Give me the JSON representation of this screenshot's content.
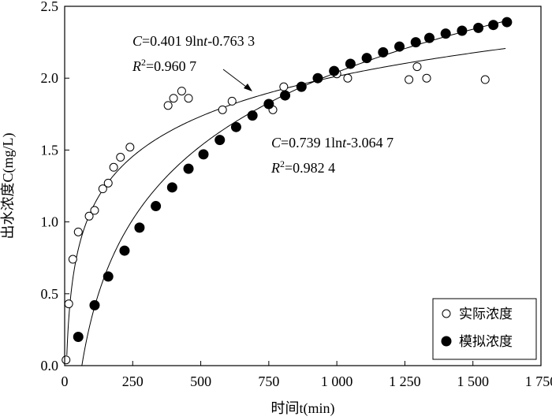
{
  "chart_data": {
    "type": "scatter",
    "xlabel": "时间t(min)",
    "ylabel": "出水浓度C(mg/L)",
    "xlim": [
      0,
      1750
    ],
    "ylim": [
      0,
      2.5
    ],
    "xticks": [
      0,
      250,
      500,
      750,
      1000,
      1250,
      1500,
      1750
    ],
    "xtick_labels": [
      "0",
      "250",
      "500",
      "750",
      "1 000",
      "1 250",
      "1 500",
      "1 750"
    ],
    "yticks": [
      0,
      0.5,
      1.0,
      1.5,
      2.0,
      2.5
    ],
    "ytick_labels": [
      "0.0",
      "0.5",
      "1.0",
      "1.5",
      "2.0",
      "2.5"
    ],
    "legend_position": "bottom-right",
    "series": [
      {
        "name": "实际浓度",
        "marker": "open-circle",
        "points": [
          [
            5,
            0.04
          ],
          [
            15,
            0.43
          ],
          [
            30,
            0.74
          ],
          [
            50,
            0.93
          ],
          [
            90,
            1.04
          ],
          [
            110,
            1.08
          ],
          [
            140,
            1.23
          ],
          [
            160,
            1.27
          ],
          [
            180,
            1.38
          ],
          [
            205,
            1.45
          ],
          [
            240,
            1.52
          ],
          [
            380,
            1.81
          ],
          [
            400,
            1.86
          ],
          [
            430,
            1.91
          ],
          [
            455,
            1.86
          ],
          [
            580,
            1.78
          ],
          [
            615,
            1.84
          ],
          [
            765,
            1.78
          ],
          [
            805,
            1.94
          ],
          [
            1000,
            2.03
          ],
          [
            1040,
            2.0
          ],
          [
            1265,
            1.99
          ],
          [
            1295,
            2.08
          ],
          [
            1330,
            2.0
          ],
          [
            1545,
            1.99
          ]
        ]
      },
      {
        "name": "模拟浓度",
        "marker": "filled-circle",
        "points": [
          [
            50,
            0.2
          ],
          [
            110,
            0.42
          ],
          [
            160,
            0.62
          ],
          [
            220,
            0.8
          ],
          [
            275,
            0.96
          ],
          [
            335,
            1.11
          ],
          [
            395,
            1.24
          ],
          [
            455,
            1.37
          ],
          [
            510,
            1.47
          ],
          [
            570,
            1.57
          ],
          [
            630,
            1.66
          ],
          [
            690,
            1.74
          ],
          [
            750,
            1.82
          ],
          [
            810,
            1.88
          ],
          [
            870,
            1.94
          ],
          [
            930,
            2.0
          ],
          [
            990,
            2.05
          ],
          [
            1050,
            2.1
          ],
          [
            1110,
            2.14
          ],
          [
            1170,
            2.18
          ],
          [
            1230,
            2.22
          ],
          [
            1290,
            2.25
          ],
          [
            1340,
            2.28
          ],
          [
            1400,
            2.31
          ],
          [
            1460,
            2.33
          ],
          [
            1520,
            2.35
          ],
          [
            1575,
            2.37
          ],
          [
            1625,
            2.39
          ]
        ]
      }
    ],
    "curves": [
      {
        "a": 0.4019,
        "b": -0.7633,
        "t_start": 8,
        "t_end": 1620
      },
      {
        "a": 0.7391,
        "b": -3.0647,
        "t_start": 63,
        "t_end": 1625
      }
    ],
    "annotations": [
      {
        "eq_pre": "C",
        "eq_mid": "=0.401 9ln",
        "eq_var": "t",
        "eq_post": "-0.763 3",
        "r2_pre": "R",
        "r2_sup": "2",
        "r2_post": "=0.960 7"
      },
      {
        "eq_pre": "C",
        "eq_mid": "=0.739 1ln",
        "eq_var": "t",
        "eq_post": "-3.064 7",
        "r2_pre": "R",
        "r2_sup": "2",
        "r2_post": "=0.982 4"
      }
    ]
  }
}
